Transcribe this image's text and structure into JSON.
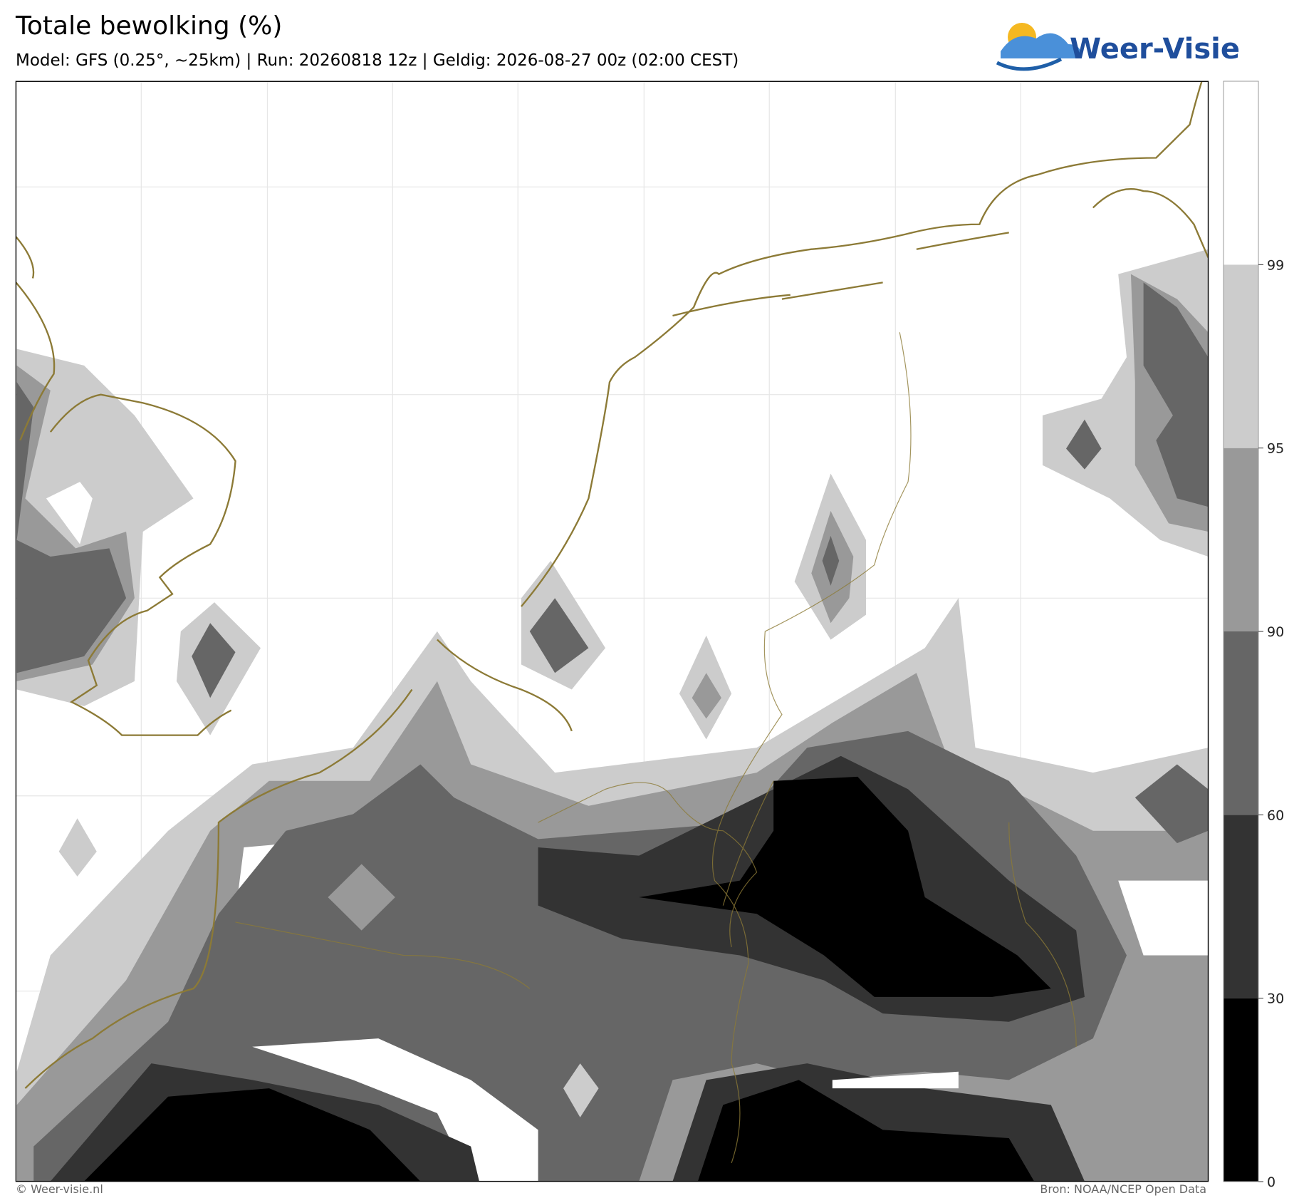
{
  "header": {
    "title": "Totale bewolking (%)",
    "subtitle": "Model: GFS (0.25°, ~25km)  |  Run: 20260818 12z  |  Geldig: 2026-08-27 00z (02:00 CEST)"
  },
  "logo": {
    "text": "Weer-Visie"
  },
  "colorbar": {
    "levels": [
      0,
      30,
      60,
      90,
      95,
      99
    ],
    "colors": [
      "#000000",
      "#333333",
      "#666666",
      "#999999",
      "#cccccc",
      "#ffffff"
    ]
  },
  "footer": {
    "left": "© Weer-visie.nl",
    "right": "Bron: NOAA/NCEP Open Data"
  }
}
